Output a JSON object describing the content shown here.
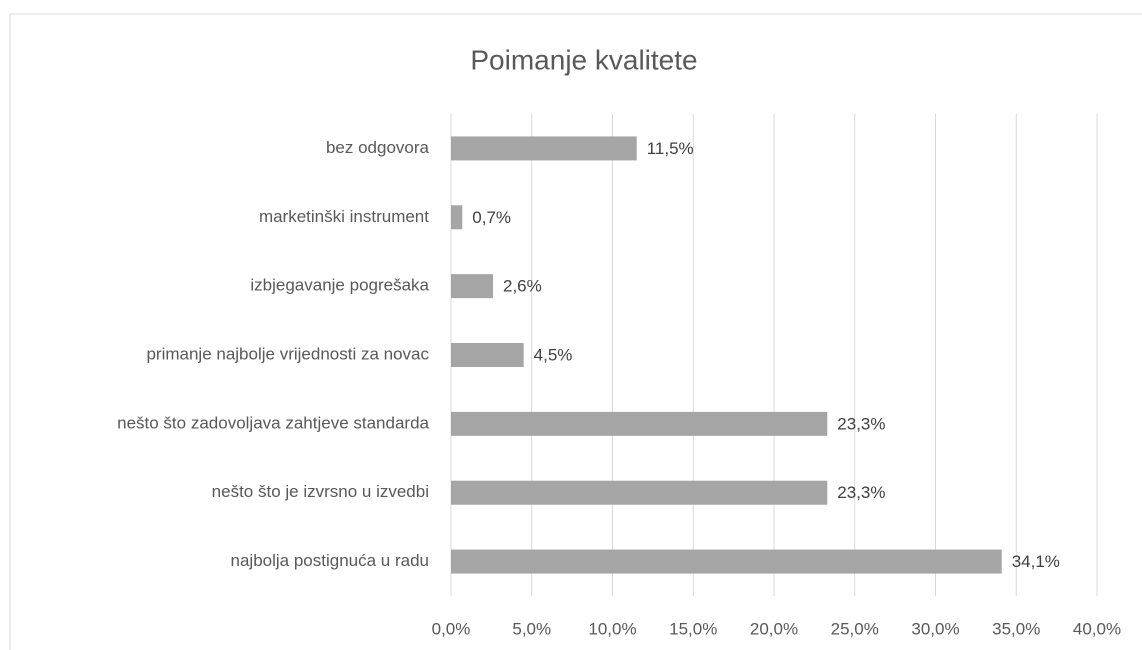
{
  "chart_data": {
    "type": "bar",
    "orientation": "horizontal",
    "title": "Poimanje kvalitete",
    "categories": [
      "bez odgovora",
      "marketinški instrument",
      "izbjegavanje pogrešaka",
      "primanje najbolje vrijednosti za novac",
      "nešto što zadovoljava zahtjeve standarda",
      "nešto što je izvrsno u izvedbi",
      "najbolja postignuća u radu"
    ],
    "values": [
      11.5,
      0.7,
      2.6,
      4.5,
      23.3,
      23.3,
      34.1
    ],
    "value_labels": [
      "11,5%",
      "0,7%",
      "2,6%",
      "4,5%",
      "23,3%",
      "23,3%",
      "34,1%"
    ],
    "color": "#a5a5a5",
    "xlim": [
      0,
      40
    ],
    "xticks": [
      {
        "value": 0,
        "label": "0,0%"
      },
      {
        "value": 5,
        "label": "5,0%"
      },
      {
        "value": 10,
        "label": "10,0%"
      },
      {
        "value": 15,
        "label": "15,0%"
      },
      {
        "value": 20,
        "label": "20,0%"
      },
      {
        "value": 25,
        "label": "25,0%"
      },
      {
        "value": 30,
        "label": "30,0%"
      },
      {
        "value": 35,
        "label": "35,0%"
      },
      {
        "value": 40,
        "label": "40,0%"
      }
    ],
    "grid": true
  }
}
